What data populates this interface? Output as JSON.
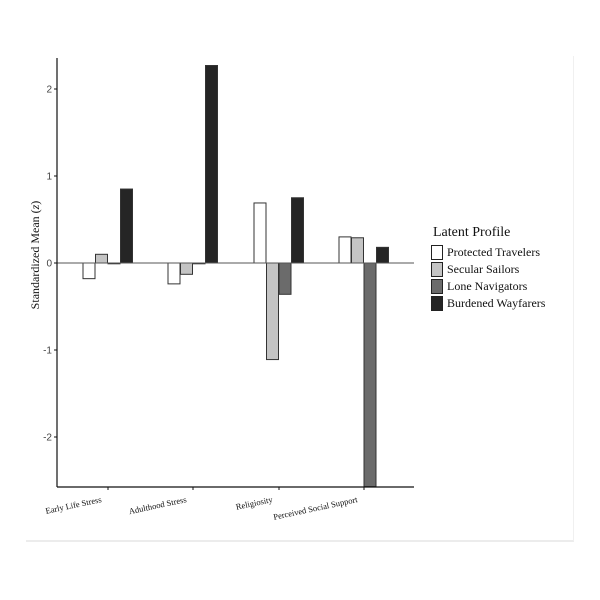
{
  "chart_data": {
    "type": "bar",
    "title": "",
    "xlabel": "",
    "ylabel": "Standardized Mean (z)",
    "ylim": [
      -2.57,
      2.36
    ],
    "yticks": [
      -2,
      -1,
      0,
      1,
      2
    ],
    "grid": false,
    "legend_position": "right",
    "legend_title": "Latent Profile",
    "categories": [
      "Early Life Stress",
      "Adulthood Stress",
      "Religiosity",
      "Perceived Social Support"
    ],
    "series": [
      {
        "name": "Protected Travelers",
        "color": "#ffffff",
        "values": [
          -0.18,
          -0.24,
          0.69,
          0.3
        ]
      },
      {
        "name": "Secular Sailors",
        "color": "#c4c4c4",
        "values": [
          0.1,
          -0.13,
          -1.11,
          0.29
        ]
      },
      {
        "name": "Lone Navigators",
        "color": "#6b6b6b",
        "values": [
          0.0,
          0.0,
          -0.36,
          -2.57
        ]
      },
      {
        "name": "Burdened Wayfarers",
        "color": "#252525",
        "values": [
          0.85,
          2.27,
          0.75,
          0.18
        ]
      }
    ]
  },
  "axis": {
    "ylabel_main": "Standardized Mean (",
    "ylabel_italic": "z",
    "ylabel_close": ")"
  },
  "legend": {
    "title": "Latent Profile",
    "items": [
      {
        "label": "Protected Travelers",
        "color": "#ffffff"
      },
      {
        "label": "Secular Sailors",
        "color": "#c4c4c4"
      },
      {
        "label": "Lone Navigators",
        "color": "#6b6b6b"
      },
      {
        "label": "Burdened Wayfarers",
        "color": "#252525"
      }
    ]
  }
}
